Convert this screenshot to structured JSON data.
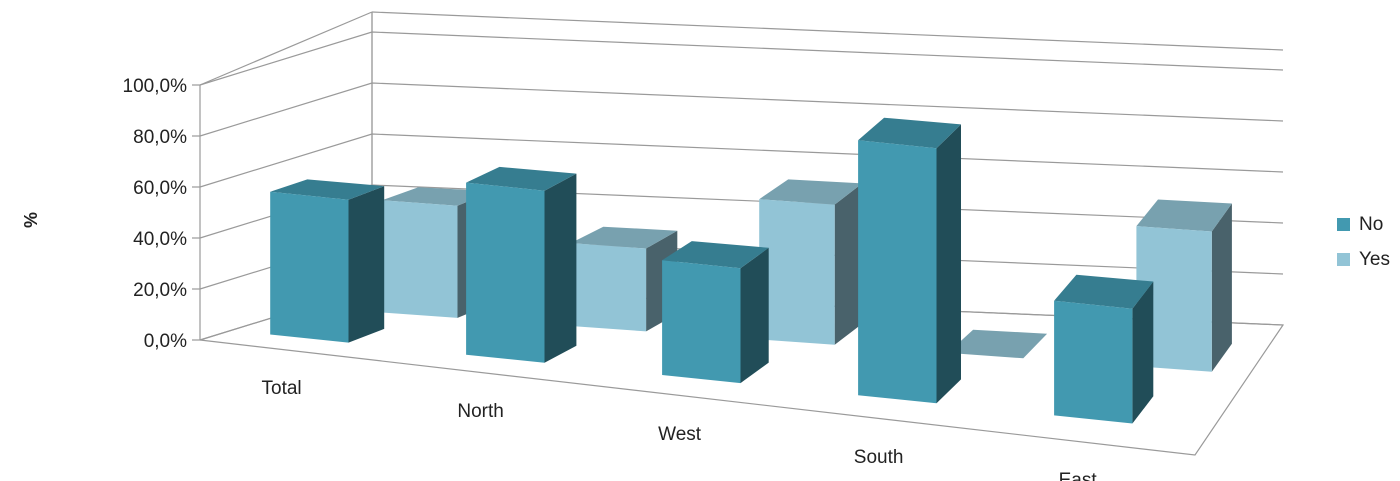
{
  "chart_data": {
    "type": "bar",
    "subtype": "3d-clustered-column",
    "ylabel": "%",
    "xlabel": "",
    "categories": [
      "Total",
      "North",
      "West",
      "South",
      "East"
    ],
    "y_tick_labels": [
      "0,0%",
      "20,0%",
      "40,0%",
      "60,0%",
      "80,0%",
      "100,0%"
    ],
    "ylim": [
      0,
      100
    ],
    "grid": true,
    "legend_position": "right",
    "series": [
      {
        "name": "No",
        "color": "#4299b0",
        "values": [
          56.0,
          67.5,
          45.0,
          100.0,
          45.0
        ]
      },
      {
        "name": "Yes",
        "color": "#92c4d6",
        "values": [
          44.0,
          32.5,
          55.0,
          0.0,
          55.0
        ]
      }
    ]
  }
}
